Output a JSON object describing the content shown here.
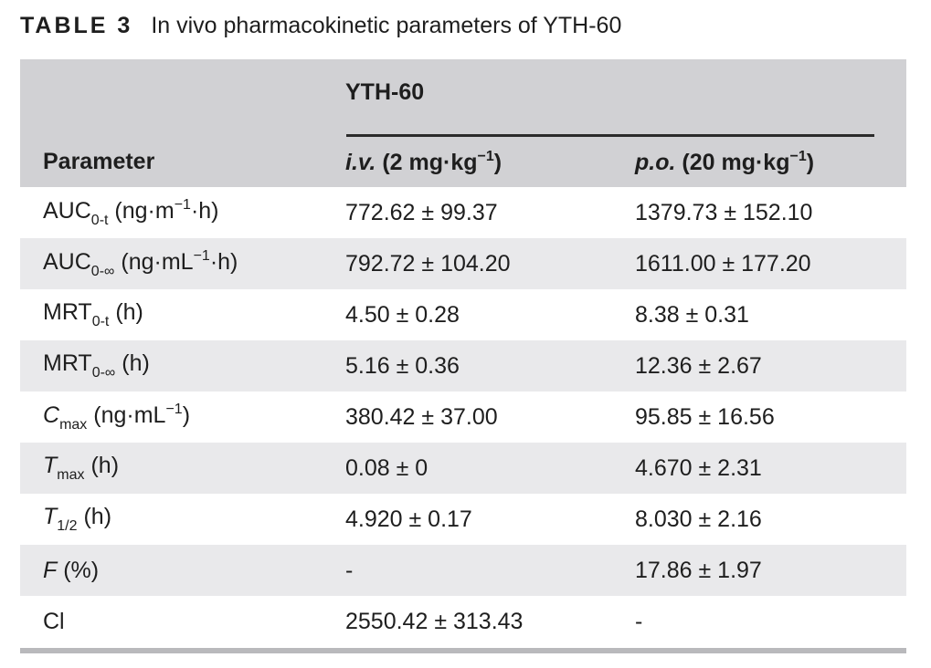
{
  "title": {
    "tag": "TABLE 3",
    "text": "In vivo pharmacokinetic parameters of YTH-60"
  },
  "colors": {
    "header_bg": "#d1d1d4",
    "stripe_bg": "#e9e9eb",
    "rule": "#2b2b2b",
    "bottom_bar": "#b9b9bc",
    "text": "#1e1e1e"
  },
  "table": {
    "group_header": "YTH-60",
    "header": {
      "parameter": "Parameter",
      "col_iv": [
        {
          "t": "i.v.",
          "i": true
        },
        {
          "t": " (2 mg·kg"
        },
        {
          "t": "−1",
          "sup": true
        },
        {
          "t": ")"
        }
      ],
      "col_po": [
        {
          "t": "p.o.",
          "i": true
        },
        {
          "t": " (20 mg·kg"
        },
        {
          "t": "−1",
          "sup": true
        },
        {
          "t": ")"
        }
      ]
    },
    "rows": [
      {
        "param": [
          {
            "t": "AUC"
          },
          {
            "t": "0-t",
            "sub": true
          },
          {
            "t": " (ng·m"
          },
          {
            "t": "−1",
            "sup": true
          },
          {
            "t": "·h)"
          }
        ],
        "iv": "772.62 ± 99.37",
        "po": "1379.73 ± 152.10"
      },
      {
        "param": [
          {
            "t": "AUC"
          },
          {
            "t": "0-∞",
            "sub": true
          },
          {
            "t": " (ng·mL"
          },
          {
            "t": "−1",
            "sup": true
          },
          {
            "t": "·h)"
          }
        ],
        "iv": "792.72 ± 104.20",
        "po": "1611.00 ± 177.20"
      },
      {
        "param": [
          {
            "t": "MRT"
          },
          {
            "t": "0-t",
            "sub": true
          },
          {
            "t": " (h)"
          }
        ],
        "iv": "4.50 ± 0.28",
        "po": "8.38 ± 0.31"
      },
      {
        "param": [
          {
            "t": "MRT"
          },
          {
            "t": "0-∞",
            "sub": true
          },
          {
            "t": " (h)"
          }
        ],
        "iv": "5.16 ± 0.36",
        "po": "12.36 ± 2.67"
      },
      {
        "param": [
          {
            "t": "C",
            "i": true
          },
          {
            "t": "max",
            "sub": true
          },
          {
            "t": " (ng·mL"
          },
          {
            "t": "−1",
            "sup": true
          },
          {
            "t": ")"
          }
        ],
        "iv": "380.42 ± 37.00",
        "po": "95.85 ± 16.56"
      },
      {
        "param": [
          {
            "t": "T",
            "i": true
          },
          {
            "t": "max",
            "sub": true
          },
          {
            "t": " (h)"
          }
        ],
        "iv": "0.08 ± 0",
        "po": "4.670 ± 2.31"
      },
      {
        "param": [
          {
            "t": "T",
            "i": true
          },
          {
            "t": "1/2",
            "sub": true
          },
          {
            "t": " (h)"
          }
        ],
        "iv": "4.920 ± 0.17",
        "po": "8.030 ± 2.16"
      },
      {
        "param": [
          {
            "t": "F",
            "i": true
          },
          {
            "t": " (%)"
          }
        ],
        "iv": "-",
        "po": "17.86 ± 1.97"
      },
      {
        "param": [
          {
            "t": "Cl"
          }
        ],
        "iv": "2550.42 ± 313.43",
        "po": "-"
      }
    ]
  }
}
